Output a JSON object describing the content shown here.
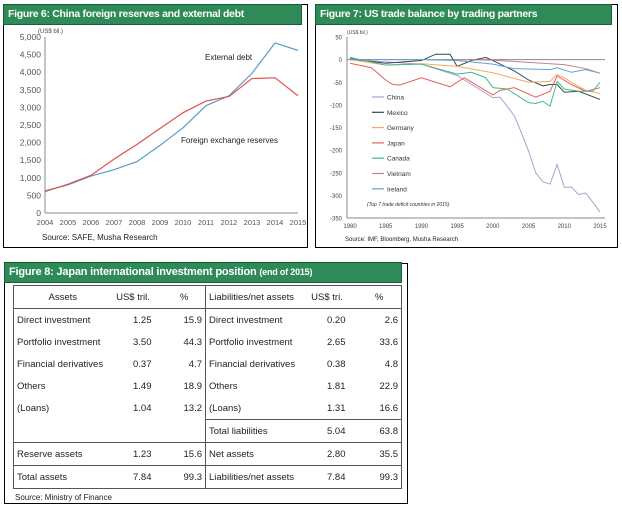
{
  "chart_data": [
    {
      "type": "line",
      "title": "Figure 6: China foreign reserves and external debt",
      "ylabel": "(US$ bil.)",
      "ylim": [
        0,
        5000
      ],
      "yticks": [
        "0",
        "500",
        "1,000",
        "1,500",
        "2,000",
        "2,500",
        "3,000",
        "3,500",
        "4,000",
        "4,500",
        "5,000"
      ],
      "x": [
        2004,
        2005,
        2006,
        2007,
        2008,
        2009,
        2010,
        2011,
        2012,
        2013,
        2014,
        2015
      ],
      "xticks": [
        "2004",
        "2005",
        "2006",
        "2007",
        "2008",
        "2009",
        "2010",
        "2011",
        "2012",
        "2013",
        "2014",
        "2015"
      ],
      "series": [
        {
          "name": "External debt",
          "color": "#5b9bc8",
          "values": [
            630,
            800,
            1050,
            1230,
            1460,
            1920,
            2420,
            3050,
            3330,
            3970,
            4830,
            4620
          ]
        },
        {
          "name": "Foreign exchange reserves",
          "color": "#e05050",
          "values": [
            610,
            820,
            1070,
            1530,
            1950,
            2400,
            2850,
            3180,
            3310,
            3820,
            3840,
            3330
          ]
        }
      ],
      "source": "Source: SAFE, Musha Research"
    },
    {
      "type": "line",
      "title": "Figure 7: US trade balance by trading partners",
      "ylabel": "(US$ bil.)",
      "ylim": [
        -350,
        50
      ],
      "yticks": [
        "-350",
        "-300",
        "-250",
        "-200",
        "-150",
        "-100",
        "-50",
        "0",
        "50"
      ],
      "xticks": [
        "1980",
        "1985",
        "1990",
        "1995",
        "2000",
        "2005",
        "2010",
        "2015"
      ],
      "note": "(Top 7 trade deficit countries in 2015)",
      "series": [
        {
          "name": "China",
          "color": "#b49ad2",
          "x": [
            1980,
            1985,
            1990,
            1995,
            2000,
            2001,
            2002,
            2003,
            2004,
            2005,
            2006,
            2007,
            2008,
            2009,
            2010,
            2011,
            2012,
            2013,
            2014,
            2015
          ],
          "values": [
            0,
            -5,
            -10,
            -35,
            -84,
            -83,
            -103,
            -124,
            -162,
            -202,
            -250,
            -270,
            -275,
            -232,
            -282,
            -282,
            -298,
            -295,
            -315,
            -337
          ]
        },
        {
          "name": "Mexico",
          "color": "#34494a",
          "x": [
            1980,
            1985,
            1990,
            1992,
            1994,
            1995,
            1997,
            1999,
            2000,
            2003,
            2005,
            2007,
            2008,
            2009,
            2010,
            2012,
            2015
          ],
          "values": [
            2,
            -8,
            -2,
            12,
            12,
            -15,
            -2,
            5,
            -2,
            -25,
            -45,
            -58,
            -55,
            -55,
            -72,
            -70,
            -88
          ]
        },
        {
          "name": "Germany",
          "color": "#f4a868",
          "x": [
            1980,
            1985,
            1990,
            1995,
            2000,
            2005,
            2008,
            2009,
            2010,
            2011,
            2013,
            2015
          ],
          "values": [
            0,
            -12,
            -9,
            -15,
            -29,
            -50,
            -48,
            -33,
            -40,
            -50,
            -68,
            -75
          ]
        },
        {
          "name": "Japan",
          "color": "#e8605a",
          "x": [
            1980,
            1983,
            1985,
            1986,
            1987,
            1990,
            1994,
            1996,
            2000,
            2001,
            2003,
            2006,
            2008,
            2009,
            2011,
            2013,
            2015
          ],
          "values": [
            -8,
            -18,
            -45,
            -55,
            -56,
            -40,
            -60,
            -40,
            -78,
            -68,
            -62,
            -83,
            -70,
            -36,
            -55,
            -70,
            -62
          ]
        },
        {
          "name": "Canada",
          "color": "#3dbb88",
          "x": [
            1980,
            1985,
            1990,
            1995,
            1997,
            1999,
            2000,
            2002,
            2005,
            2006,
            2007,
            2008,
            2009,
            2010,
            2012,
            2014,
            2015
          ],
          "values": [
            5,
            -12,
            -10,
            -32,
            -28,
            -40,
            -62,
            -65,
            -95,
            -97,
            -92,
            -103,
            -48,
            -65,
            -70,
            -70,
            -50
          ]
        },
        {
          "name": "Vietnam",
          "color": "#c08585",
          "x": [
            1995,
            2000,
            2005,
            2010,
            2013,
            2015
          ],
          "values": [
            0,
            -1,
            -6,
            -11,
            -20,
            -30
          ]
        },
        {
          "name": "Ireland",
          "color": "#5fa3d6",
          "x": [
            1980,
            1990,
            1995,
            2000,
            2003,
            2008,
            2009,
            2011,
            2013,
            2015
          ],
          "values": [
            0,
            0,
            -2,
            -10,
            -20,
            -22,
            -18,
            -28,
            -22,
            -30
          ]
        }
      ],
      "source": "Source: IMF, Bloomberg, Musha Research"
    }
  ],
  "fig8": {
    "title": "Figure 8: Japan international investment position",
    "subtitle": "(end of 2015)",
    "headers": [
      "Assets",
      "US$ tril.",
      "%",
      "Liabilities/net assets",
      "US$ tri.",
      "%"
    ],
    "rows": [
      [
        "Direct investment",
        "1.25",
        "15.9",
        "Direct investment",
        "0.20",
        "2.6"
      ],
      [
        "Portfolio investment",
        "3.50",
        "44.3",
        "Portfolio investment",
        "2.65",
        "33.6"
      ],
      [
        "Financial derivatives",
        "0.37",
        "4.7",
        "Financial derivatives",
        "0.38",
        "4.8"
      ],
      [
        "Others",
        "1.49",
        "18.9",
        "Others",
        "1.81",
        "22.9"
      ],
      [
        "(Loans)",
        "1.04",
        "13.2",
        "(Loans)",
        "1.31",
        "16.6"
      ],
      [
        "",
        "",
        "",
        "Total liabilities",
        "5.04",
        "63.8"
      ],
      [
        "Reserve assets",
        "1.23",
        "15.6",
        "Net assets",
        "2.80",
        "35.5"
      ],
      [
        "Total assets",
        "7.84",
        "99.3",
        "Liabilities/net assets",
        "7.84",
        "99.3"
      ]
    ],
    "source": "Source: Ministry of Finance"
  }
}
